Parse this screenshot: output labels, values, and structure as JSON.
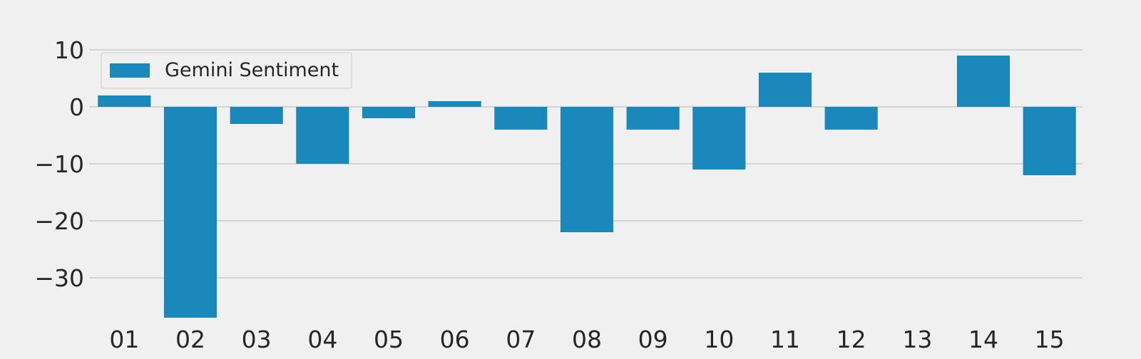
{
  "chart_data": {
    "type": "bar",
    "categories": [
      "01",
      "02",
      "03",
      "04",
      "05",
      "06",
      "07",
      "08",
      "09",
      "10",
      "11",
      "12",
      "13",
      "14",
      "15"
    ],
    "series": [
      {
        "name": "Gemini Sentiment",
        "values": [
          2,
          -37,
          -3,
          -10,
          -2,
          1,
          -4,
          -22,
          -4,
          -11,
          6,
          -4,
          0,
          9,
          -12
        ]
      }
    ],
    "ylim": [
      -38,
      15
    ],
    "yticks": [
      10,
      0,
      -10,
      -20,
      -30
    ],
    "ytick_labels": [
      "10",
      "0",
      "−10",
      "−20",
      "−30"
    ],
    "grid": "horizontal",
    "legend_position": "top-left",
    "colors": {
      "bar": "#1b88bc",
      "background": "#f0f0f0",
      "grid": "#cbcbcb",
      "text": "#262626"
    }
  }
}
